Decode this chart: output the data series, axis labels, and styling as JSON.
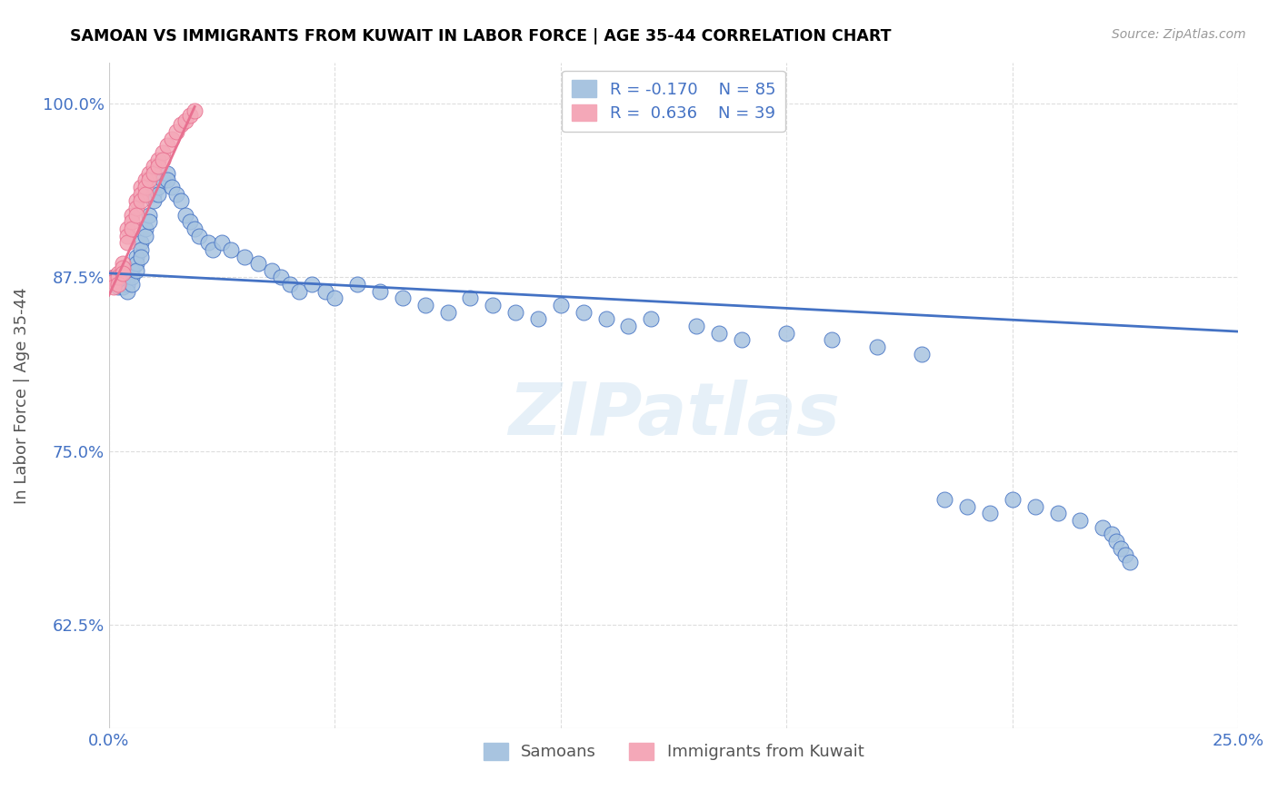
{
  "title": "SAMOAN VS IMMIGRANTS FROM KUWAIT IN LABOR FORCE | AGE 35-44 CORRELATION CHART",
  "source": "Source: ZipAtlas.com",
  "ylabel": "In Labor Force | Age 35-44",
  "xlim": [
    0.0,
    0.25
  ],
  "ylim": [
    0.55,
    1.03
  ],
  "yticks": [
    0.625,
    0.75,
    0.875,
    1.0
  ],
  "yticklabels": [
    "62.5%",
    "75.0%",
    "87.5%",
    "100.0%"
  ],
  "xticks": [
    0.0,
    0.05,
    0.1,
    0.15,
    0.2,
    0.25
  ],
  "xticklabels": [
    "0.0%",
    "",
    "",
    "",
    "",
    "25.0%"
  ],
  "blue_R": "-0.170",
  "blue_N": "85",
  "pink_R": "0.636",
  "pink_N": "39",
  "blue_color": "#a8c4e0",
  "pink_color": "#f4a8b8",
  "blue_line_color": "#4472c4",
  "pink_line_color": "#e87090",
  "legend_label_blue": "Samoans",
  "legend_label_pink": "Immigrants from Kuwait",
  "watermark": "ZIPatlas",
  "blue_scatter_x": [
    0.001,
    0.001,
    0.002,
    0.002,
    0.002,
    0.003,
    0.003,
    0.003,
    0.004,
    0.004,
    0.004,
    0.005,
    0.005,
    0.005,
    0.006,
    0.006,
    0.006,
    0.007,
    0.007,
    0.007,
    0.008,
    0.008,
    0.009,
    0.009,
    0.01,
    0.01,
    0.011,
    0.011,
    0.012,
    0.013,
    0.013,
    0.014,
    0.015,
    0.016,
    0.017,
    0.018,
    0.019,
    0.02,
    0.022,
    0.023,
    0.025,
    0.027,
    0.03,
    0.033,
    0.036,
    0.038,
    0.04,
    0.042,
    0.045,
    0.048,
    0.05,
    0.055,
    0.06,
    0.065,
    0.07,
    0.075,
    0.08,
    0.085,
    0.09,
    0.095,
    0.1,
    0.105,
    0.11,
    0.115,
    0.12,
    0.13,
    0.135,
    0.14,
    0.15,
    0.16,
    0.17,
    0.18,
    0.185,
    0.19,
    0.195,
    0.2,
    0.205,
    0.21,
    0.215,
    0.22,
    0.222,
    0.223,
    0.224,
    0.225,
    0.226
  ],
  "blue_scatter_y": [
    0.875,
    0.872,
    0.875,
    0.87,
    0.868,
    0.875,
    0.872,
    0.868,
    0.875,
    0.87,
    0.865,
    0.88,
    0.875,
    0.87,
    0.89,
    0.885,
    0.88,
    0.9,
    0.895,
    0.89,
    0.91,
    0.905,
    0.92,
    0.915,
    0.935,
    0.93,
    0.94,
    0.935,
    0.945,
    0.95,
    0.945,
    0.94,
    0.935,
    0.93,
    0.92,
    0.915,
    0.91,
    0.905,
    0.9,
    0.895,
    0.9,
    0.895,
    0.89,
    0.885,
    0.88,
    0.875,
    0.87,
    0.865,
    0.87,
    0.865,
    0.86,
    0.87,
    0.865,
    0.86,
    0.855,
    0.85,
    0.86,
    0.855,
    0.85,
    0.845,
    0.855,
    0.85,
    0.845,
    0.84,
    0.845,
    0.84,
    0.835,
    0.83,
    0.835,
    0.83,
    0.825,
    0.82,
    0.715,
    0.71,
    0.705,
    0.715,
    0.71,
    0.705,
    0.7,
    0.695,
    0.69,
    0.685,
    0.68,
    0.675,
    0.67
  ],
  "pink_scatter_x": [
    0.001,
    0.001,
    0.001,
    0.002,
    0.002,
    0.002,
    0.003,
    0.003,
    0.003,
    0.004,
    0.004,
    0.004,
    0.005,
    0.005,
    0.005,
    0.006,
    0.006,
    0.006,
    0.007,
    0.007,
    0.007,
    0.008,
    0.008,
    0.008,
    0.009,
    0.009,
    0.01,
    0.01,
    0.011,
    0.011,
    0.012,
    0.012,
    0.013,
    0.014,
    0.015,
    0.016,
    0.017,
    0.018,
    0.019
  ],
  "pink_scatter_y": [
    0.875,
    0.872,
    0.868,
    0.878,
    0.875,
    0.87,
    0.885,
    0.882,
    0.878,
    0.91,
    0.905,
    0.9,
    0.92,
    0.915,
    0.91,
    0.93,
    0.925,
    0.92,
    0.94,
    0.935,
    0.93,
    0.945,
    0.94,
    0.935,
    0.95,
    0.945,
    0.955,
    0.95,
    0.96,
    0.955,
    0.965,
    0.96,
    0.97,
    0.975,
    0.98,
    0.985,
    0.988,
    0.992,
    0.995
  ],
  "blue_trend_x": [
    0.0,
    0.25
  ],
  "blue_trend_y": [
    0.878,
    0.836
  ],
  "pink_trend_x": [
    0.0,
    0.019
  ],
  "pink_trend_y": [
    0.862,
    0.998
  ]
}
